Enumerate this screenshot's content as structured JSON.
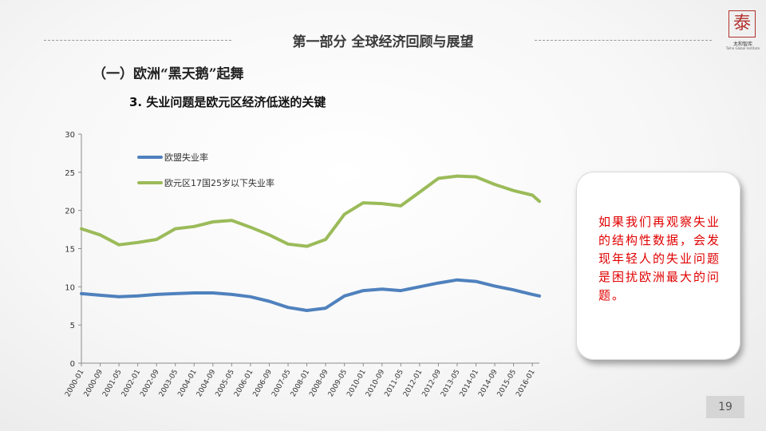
{
  "header": {
    "section_title": "第一部分  全球经济回顾与展望",
    "logo_char": "泰",
    "logo_name": "太和智库",
    "logo_subtitle": "Taihe Global Institute"
  },
  "heading1": "（一）欧洲“黑天鹅”起舞",
  "heading2": "3. 失业问题是欧元区经济低迷的关键",
  "callout": {
    "text": "如果我们再观察失业的结构性数据，会发现年轻人的失业问题是困扰欧洲最大的问题。"
  },
  "page_number": "19",
  "colors": {
    "eu_series": "#4f81bd",
    "youth_series": "#9bbb59",
    "callout_text": "#e00000"
  },
  "chart_data": {
    "type": "line",
    "title": "",
    "xlabel": "",
    "ylabel": "",
    "ylim": [
      0,
      30
    ],
    "yticks": [
      "0",
      "5",
      "10",
      "15",
      "20",
      "25",
      "30"
    ],
    "xticks": [
      "2000-01",
      "2000-09",
      "2001-05",
      "2002-01",
      "2002-09",
      "2003-05",
      "2004-01",
      "2004-09",
      "2005-05",
      "2006-01",
      "2006-09",
      "2007-05",
      "2008-01",
      "2008-09",
      "2009-05",
      "2010-01",
      "2010-09",
      "2011-05",
      "2012-01",
      "2012-09",
      "2013-05",
      "2014-01",
      "2014-09",
      "2015-05",
      "2016-01"
    ],
    "grid": false,
    "legend_position": "top-left",
    "series": [
      {
        "name": "欧盟失业率",
        "x": [
          "2000-01",
          "2000-09",
          "2001-05",
          "2002-01",
          "2002-09",
          "2003-05",
          "2004-01",
          "2004-09",
          "2005-05",
          "2006-01",
          "2006-09",
          "2007-05",
          "2008-01",
          "2008-09",
          "2009-05",
          "2010-01",
          "2010-09",
          "2011-05",
          "2012-01",
          "2012-09",
          "2013-05",
          "2014-01",
          "2014-09",
          "2015-05",
          "2016-01",
          "2016-04"
        ],
        "values": [
          9.1,
          8.9,
          8.7,
          8.8,
          9.0,
          9.1,
          9.2,
          9.2,
          9.0,
          8.7,
          8.1,
          7.3,
          6.9,
          7.2,
          8.8,
          9.5,
          9.7,
          9.5,
          10.0,
          10.5,
          10.9,
          10.7,
          10.1,
          9.6,
          9.0,
          8.8
        ]
      },
      {
        "name": "欧元区17国25岁以下失业率",
        "x": [
          "2000-01",
          "2000-09",
          "2001-05",
          "2002-01",
          "2002-09",
          "2003-05",
          "2004-01",
          "2004-09",
          "2005-05",
          "2006-01",
          "2006-09",
          "2007-05",
          "2008-01",
          "2008-09",
          "2009-05",
          "2010-01",
          "2010-09",
          "2011-05",
          "2012-01",
          "2012-09",
          "2013-05",
          "2014-01",
          "2014-09",
          "2015-05",
          "2016-01",
          "2016-04"
        ],
        "values": [
          17.6,
          16.8,
          15.5,
          15.8,
          16.2,
          17.6,
          17.9,
          18.5,
          18.7,
          17.8,
          16.8,
          15.6,
          15.3,
          16.2,
          19.5,
          21.0,
          20.9,
          20.6,
          22.4,
          24.2,
          24.5,
          24.4,
          23.4,
          22.6,
          22.0,
          21.2
        ]
      }
    ]
  }
}
